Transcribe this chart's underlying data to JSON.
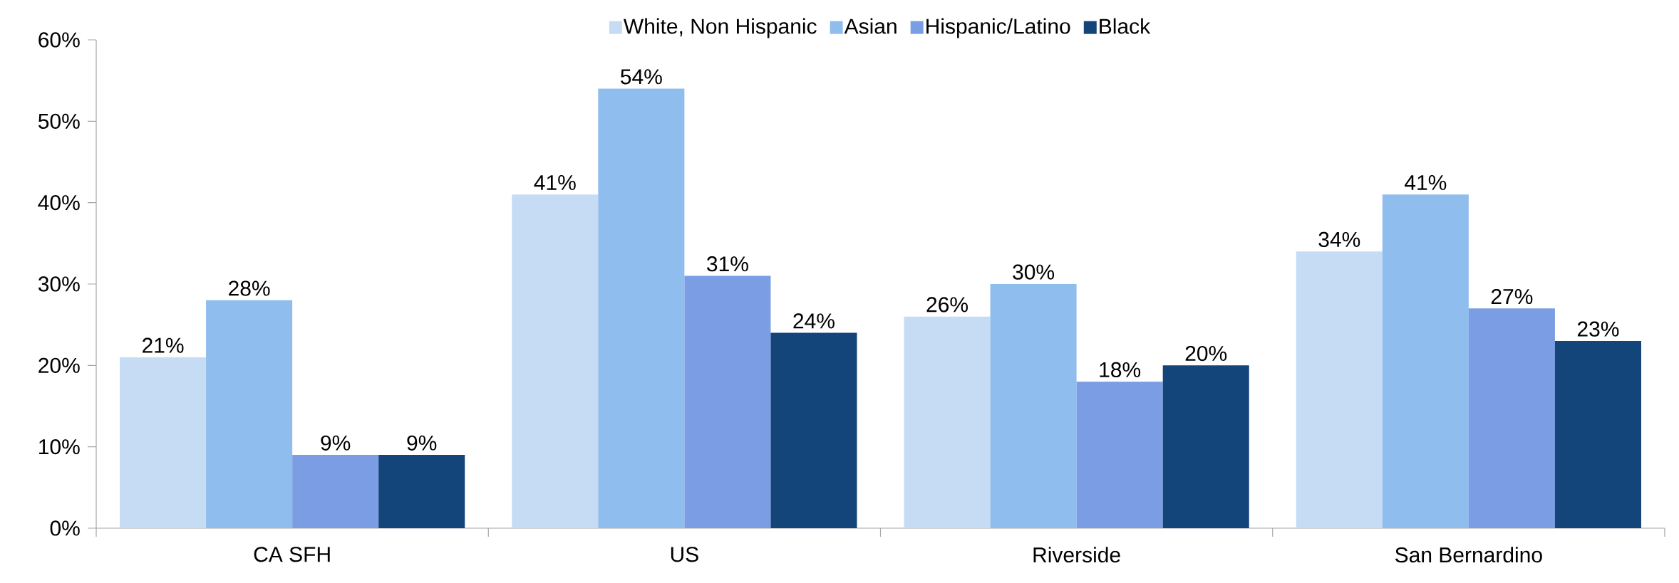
{
  "chart_data": {
    "type": "bar",
    "categories": [
      "CA SFH",
      "US",
      "Riverside",
      "San Bernardino"
    ],
    "series": [
      {
        "name": "White, Non Hispanic",
        "color": "#c6dcf5",
        "values": [
          21,
          41,
          26,
          34
        ],
        "value_labels": [
          "21%",
          "41%",
          "26%",
          "34%"
        ]
      },
      {
        "name": "Asian",
        "color": "#8fbdee",
        "values": [
          28,
          54,
          30,
          41
        ],
        "value_labels": [
          "28%",
          "54%",
          "30%",
          "41%"
        ]
      },
      {
        "name": "Hispanic/Latino",
        "color": "#7a9de3",
        "values": [
          9,
          31,
          18,
          27
        ],
        "value_labels": [
          "9%",
          "31%",
          "18%",
          "27%"
        ]
      },
      {
        "name": "Black",
        "color": "#13447a",
        "values": [
          9,
          24,
          20,
          23
        ],
        "value_labels": [
          "9%",
          "24%",
          "20%",
          "23%"
        ]
      }
    ],
    "ylim": [
      0,
      60
    ],
    "yticks": [
      {
        "value": 0,
        "label": "0%"
      },
      {
        "value": 10,
        "label": "10%"
      },
      {
        "value": 20,
        "label": "20%"
      },
      {
        "value": 30,
        "label": "30%"
      },
      {
        "value": 40,
        "label": "40%"
      },
      {
        "value": 50,
        "label": "50%"
      },
      {
        "value": 60,
        "label": "60%"
      }
    ],
    "grid": false,
    "legend": "top"
  }
}
